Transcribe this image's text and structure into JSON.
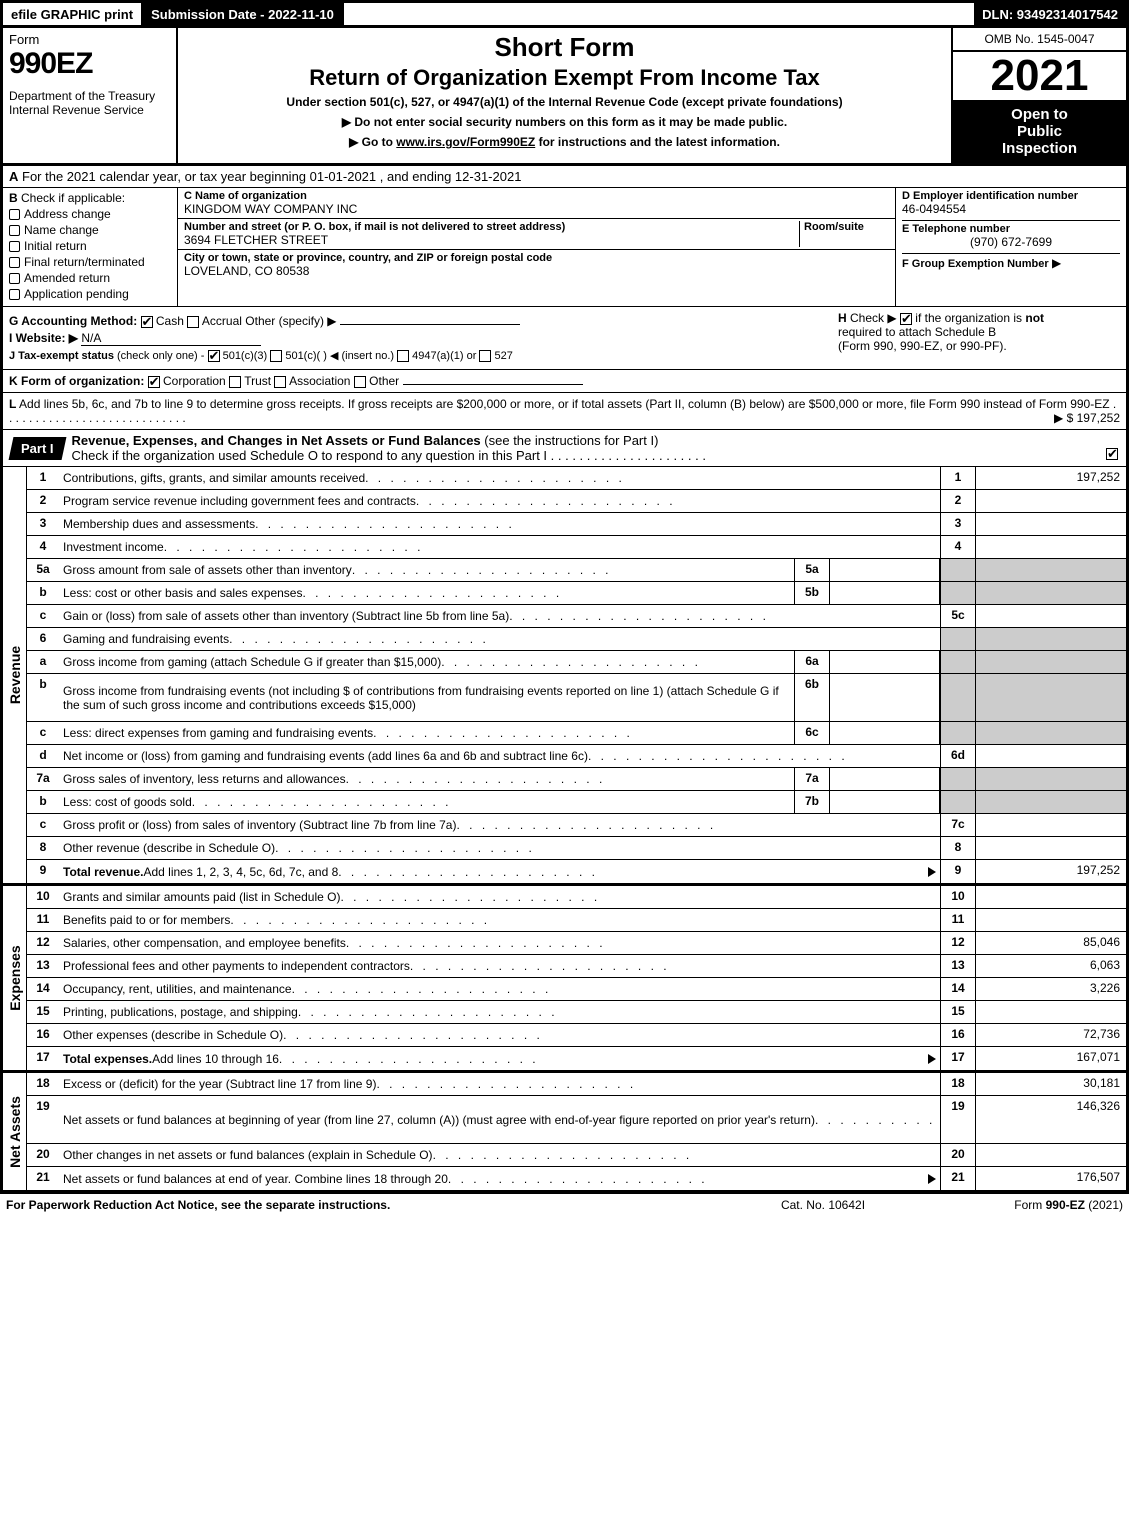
{
  "top": {
    "efile": "efile GRAPHIC print",
    "subdate": "Submission Date - 2022-11-10",
    "dln": "DLN: 93492314017542"
  },
  "header": {
    "form_word": "Form",
    "form_num": "990EZ",
    "dept": "Department of the Treasury",
    "irs": "Internal Revenue Service",
    "title1": "Short Form",
    "title2": "Return of Organization Exempt From Income Tax",
    "subtitle": "Under section 501(c), 527, or 4947(a)(1) of the Internal Revenue Code (except private foundations)",
    "note1": "▶ Do not enter social security numbers on this form as it may be made public.",
    "note2": "▶ Go to www.irs.gov/Form990EZ for instructions and the latest information.",
    "omb": "OMB No. 1545-0047",
    "year": "2021",
    "open1": "Open to",
    "open2": "Public",
    "open3": "Inspection"
  },
  "lineA": {
    "lbl": "A",
    "text": "For the 2021 calendar year, or tax year beginning 01-01-2021 , and ending 12-31-2021"
  },
  "sectionB": {
    "b_hdr": "B",
    "b_sub": "Check if applicable:",
    "checks": [
      "Address change",
      "Name change",
      "Initial return",
      "Final return/terminated",
      "Amended return",
      "Application pending"
    ],
    "c_lbl": "C Name of organization",
    "c_name": "KINGDOM WAY COMPANY INC",
    "c_street_lbl": "Number and street (or P. O. box, if mail is not delivered to street address)",
    "c_room_lbl": "Room/suite",
    "c_street": "3694 FLETCHER STREET",
    "c_city_lbl": "City or town, state or province, country, and ZIP or foreign postal code",
    "c_city": "LOVELAND, CO  80538",
    "d_lbl": "D Employer identification number",
    "d_val": "46-0494554",
    "e_lbl": "E Telephone number",
    "e_val": "(970) 672-7699",
    "f_lbl": "F Group Exemption Number",
    "f_tri": "▶"
  },
  "mid": {
    "g_lbl": "G Accounting Method:",
    "g_cash": "Cash",
    "g_accrual": "Accrual",
    "g_other": "Other (specify) ▶",
    "h_lbl": "H",
    "h_text1": "Check ▶",
    "h_text2": "if the organization is",
    "h_not": "not",
    "h_text3": "required to attach Schedule B",
    "h_text4": "(Form 990, 990-EZ, or 990-PF).",
    "i_lbl": "I Website: ▶",
    "i_val": "N/A",
    "j_lbl": "J Tax-exempt status",
    "j_hint": "(check only one) -",
    "j_501c3": "501(c)(3)",
    "j_501c": "501(c)(  ) ◀ (insert no.)",
    "j_4947": "4947(a)(1) or",
    "j_527": "527",
    "k_lbl": "K Form of organization:",
    "k_corp": "Corporation",
    "k_trust": "Trust",
    "k_assoc": "Association",
    "k_other": "Other",
    "l_lbl": "L",
    "l_text": "Add lines 5b, 6c, and 7b to line 9 to determine gross receipts. If gross receipts are $200,000 or more, or if total assets (Part II, column (B) below) are $500,000 or more, file Form 990 instead of Form 990-EZ",
    "l_val": "▶ $ 197,252"
  },
  "part1": {
    "tab": "Part I",
    "title": "Revenue, Expenses, and Changes in Net Assets or Fund Balances",
    "hint": "(see the instructions for Part I)",
    "sub": "Check if the organization used Schedule O to respond to any question in this Part I"
  },
  "revenue_label": "Revenue",
  "expenses_label": "Expenses",
  "netassets_label": "Net Assets",
  "rows": [
    {
      "n": "1",
      "d": "Contributions, gifts, grants, and similar amounts received",
      "rn": "1",
      "rv": "197,252"
    },
    {
      "n": "2",
      "d": "Program service revenue including government fees and contracts",
      "rn": "2",
      "rv": ""
    },
    {
      "n": "3",
      "d": "Membership dues and assessments",
      "rn": "3",
      "rv": ""
    },
    {
      "n": "4",
      "d": "Investment income",
      "rn": "4",
      "rv": ""
    },
    {
      "n": "5a",
      "d": "Gross amount from sale of assets other than inventory",
      "sn": "5a",
      "shaded": true
    },
    {
      "n": "b",
      "d": "Less: cost or other basis and sales expenses",
      "sn": "5b",
      "shaded": true
    },
    {
      "n": "c",
      "d": "Gain or (loss) from sale of assets other than inventory (Subtract line 5b from line 5a)",
      "rn": "5c",
      "rv": ""
    },
    {
      "n": "6",
      "d": "Gaming and fundraising events",
      "shaded": true,
      "noval": true
    },
    {
      "n": "a",
      "d": "Gross income from gaming (attach Schedule G if greater than $15,000)",
      "sn": "6a",
      "shaded": true
    },
    {
      "n": "b",
      "d": "Gross income from fundraising events (not including $                      of contributions from fundraising events reported on line 1) (attach Schedule G if the sum of such gross income and contributions exceeds $15,000)",
      "sn": "6b",
      "shaded": true,
      "tall": true
    },
    {
      "n": "c",
      "d": "Less: direct expenses from gaming and fundraising events",
      "sn": "6c",
      "shaded": true
    },
    {
      "n": "d",
      "d": "Net income or (loss) from gaming and fundraising events (add lines 6a and 6b and subtract line 6c)",
      "rn": "6d",
      "rv": ""
    },
    {
      "n": "7a",
      "d": "Gross sales of inventory, less returns and allowances",
      "sn": "7a",
      "shaded": true
    },
    {
      "n": "b",
      "d": "Less: cost of goods sold",
      "sn": "7b",
      "shaded": true
    },
    {
      "n": "c",
      "d": "Gross profit or (loss) from sales of inventory (Subtract line 7b from line 7a)",
      "rn": "7c",
      "rv": ""
    },
    {
      "n": "8",
      "d": "Other revenue (describe in Schedule O)",
      "rn": "8",
      "rv": ""
    },
    {
      "n": "9",
      "d": "Total revenue. Add lines 1, 2, 3, 4, 5c, 6d, 7c, and 8",
      "rn": "9",
      "rv": "197,252",
      "bold": true,
      "arrow": true
    }
  ],
  "exp_rows": [
    {
      "n": "10",
      "d": "Grants and similar amounts paid (list in Schedule O)",
      "rn": "10",
      "rv": ""
    },
    {
      "n": "11",
      "d": "Benefits paid to or for members",
      "rn": "11",
      "rv": ""
    },
    {
      "n": "12",
      "d": "Salaries, other compensation, and employee benefits",
      "rn": "12",
      "rv": "85,046"
    },
    {
      "n": "13",
      "d": "Professional fees and other payments to independent contractors",
      "rn": "13",
      "rv": "6,063"
    },
    {
      "n": "14",
      "d": "Occupancy, rent, utilities, and maintenance",
      "rn": "14",
      "rv": "3,226"
    },
    {
      "n": "15",
      "d": "Printing, publications, postage, and shipping",
      "rn": "15",
      "rv": ""
    },
    {
      "n": "16",
      "d": "Other expenses (describe in Schedule O)",
      "rn": "16",
      "rv": "72,736"
    },
    {
      "n": "17",
      "d": "Total expenses. Add lines 10 through 16",
      "rn": "17",
      "rv": "167,071",
      "bold": true,
      "arrow": true
    }
  ],
  "na_rows": [
    {
      "n": "18",
      "d": "Excess or (deficit) for the year (Subtract line 17 from line 9)",
      "rn": "18",
      "rv": "30,181"
    },
    {
      "n": "19",
      "d": "Net assets or fund balances at beginning of year (from line 27, column (A)) (must agree with end-of-year figure reported on prior year's return)",
      "rn": "19",
      "rv": "146,326",
      "tall": true
    },
    {
      "n": "20",
      "d": "Other changes in net assets or fund balances (explain in Schedule O)",
      "rn": "20",
      "rv": ""
    },
    {
      "n": "21",
      "d": "Net assets or fund balances at end of year. Combine lines 18 through 20",
      "rn": "21",
      "rv": "176,507",
      "arrow": true
    }
  ],
  "footer": {
    "l": "For Paperwork Reduction Act Notice, see the separate instructions.",
    "m": "Cat. No. 10642I",
    "r": "Form 990-EZ (2021)"
  }
}
